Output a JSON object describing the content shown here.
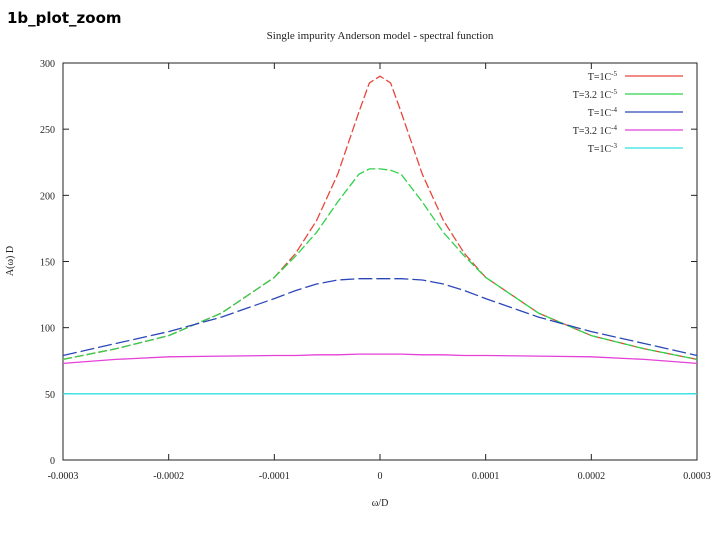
{
  "slide_label": "1b_plot_zoom",
  "chart_data": {
    "type": "line",
    "title": "Single impurity Anderson model - spectral function",
    "xlabel": "ω/D",
    "ylabel": "A(ω) D",
    "xlim": [
      -0.0003,
      0.0003
    ],
    "ylim": [
      0,
      300
    ],
    "x_ticks": [
      -0.0003,
      -0.0002,
      -0.0001,
      0,
      0.0001,
      0.0002,
      0.0003
    ],
    "x_tick_labels": [
      "-0.0003",
      "-0.0002",
      "-0.0001",
      "0",
      "0.0001",
      "0.0002",
      "0.0003"
    ],
    "y_ticks": [
      0,
      50,
      100,
      150,
      200,
      250,
      300
    ],
    "y_tick_labels": [
      "0",
      "50",
      "100",
      "150",
      "200",
      "250",
      "300"
    ],
    "grid": false,
    "legend_position": "top-right",
    "x": [
      -0.0003,
      -0.00025,
      -0.0002,
      -0.00015,
      -0.0001,
      -8e-05,
      -6e-05,
      -4e-05,
      -2e-05,
      -1e-05,
      0,
      1e-05,
      2e-05,
      4e-05,
      6e-05,
      8e-05,
      0.0001,
      0.00015,
      0.0002,
      0.00025,
      0.0003
    ],
    "series": [
      {
        "name": "T=1C",
        "name_sup": "-5",
        "color": "#e8463c",
        "dash": "9 3",
        "values": [
          76,
          84,
          94,
          111,
          138,
          156,
          181,
          216,
          263,
          285,
          290,
          285,
          263,
          216,
          181,
          156,
          138,
          111,
          94,
          84,
          76
        ]
      },
      {
        "name": "T=3.2 1C",
        "name_sup": "-5",
        "color": "#2fd24a",
        "dash": "9 3",
        "values": [
          76,
          84,
          94,
          111,
          138,
          154,
          172,
          195,
          216,
          220,
          220,
          219,
          216,
          195,
          172,
          154,
          138,
          111,
          94,
          84,
          76
        ]
      },
      {
        "name": "T=1C",
        "name_sup": "-4",
        "color": "#2b47b8",
        "dash": "14 4",
        "values": [
          79,
          88,
          97,
          108,
          122,
          128,
          133,
          136,
          137,
          137,
          137,
          137,
          137,
          136,
          133,
          128,
          122,
          108,
          97,
          88,
          79
        ]
      },
      {
        "name": "T=3.2 1C",
        "name_sup": "-4",
        "color": "#e441d8",
        "dash": "",
        "values": [
          73,
          76,
          78,
          78.5,
          79,
          79,
          79.5,
          79.5,
          80,
          80,
          80,
          80,
          80,
          79.5,
          79.5,
          79,
          79,
          78.5,
          78,
          76,
          73
        ]
      },
      {
        "name": "T=1C",
        "name_sup": "-3",
        "color": "#2ee0e0",
        "dash": "",
        "values": [
          50,
          50,
          50,
          50,
          50,
          50,
          50,
          50,
          50,
          50,
          50,
          50,
          50,
          50,
          50,
          50,
          50,
          50,
          50,
          50,
          50
        ]
      }
    ]
  }
}
